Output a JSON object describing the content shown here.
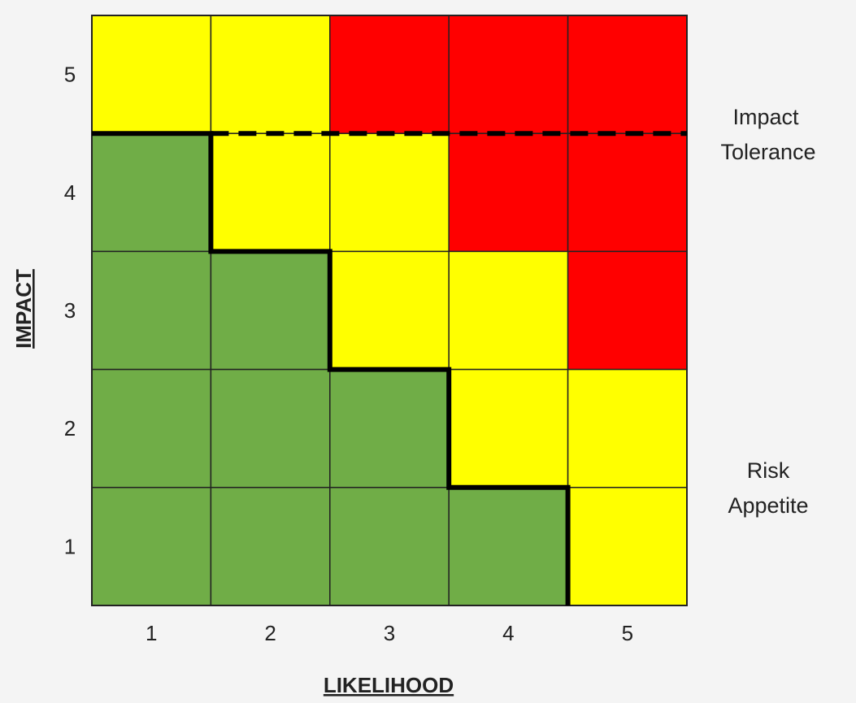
{
  "chart_data": {
    "type": "heatmap",
    "title": "",
    "xlabel": "LIKELIHOOD",
    "ylabel": "IMPACT",
    "x_ticks": [
      "1",
      "2",
      "3",
      "4",
      "5"
    ],
    "y_ticks": [
      "1",
      "2",
      "3",
      "4",
      "5"
    ],
    "rows_top_to_bottom": [
      [
        "yellow",
        "yellow",
        "red",
        "red",
        "red"
      ],
      [
        "green",
        "yellow",
        "yellow",
        "red",
        "red"
      ],
      [
        "green",
        "green",
        "yellow",
        "yellow",
        "red"
      ],
      [
        "green",
        "green",
        "green",
        "yellow",
        "yellow"
      ],
      [
        "green",
        "green",
        "green",
        "green",
        "yellow"
      ]
    ],
    "colors": {
      "green": "#70ad47",
      "yellow": "#ffff00",
      "red": "#ff0000"
    },
    "annotations": {
      "impact_tolerance": {
        "lines": [
          "Impact",
          "Tolerance"
        ],
        "line_style": "dashed",
        "impact_level": 4.5
      },
      "risk_appetite": {
        "lines": [
          "Risk",
          "Appetite"
        ],
        "line_style": "solid",
        "boundary": "stepped"
      }
    }
  }
}
